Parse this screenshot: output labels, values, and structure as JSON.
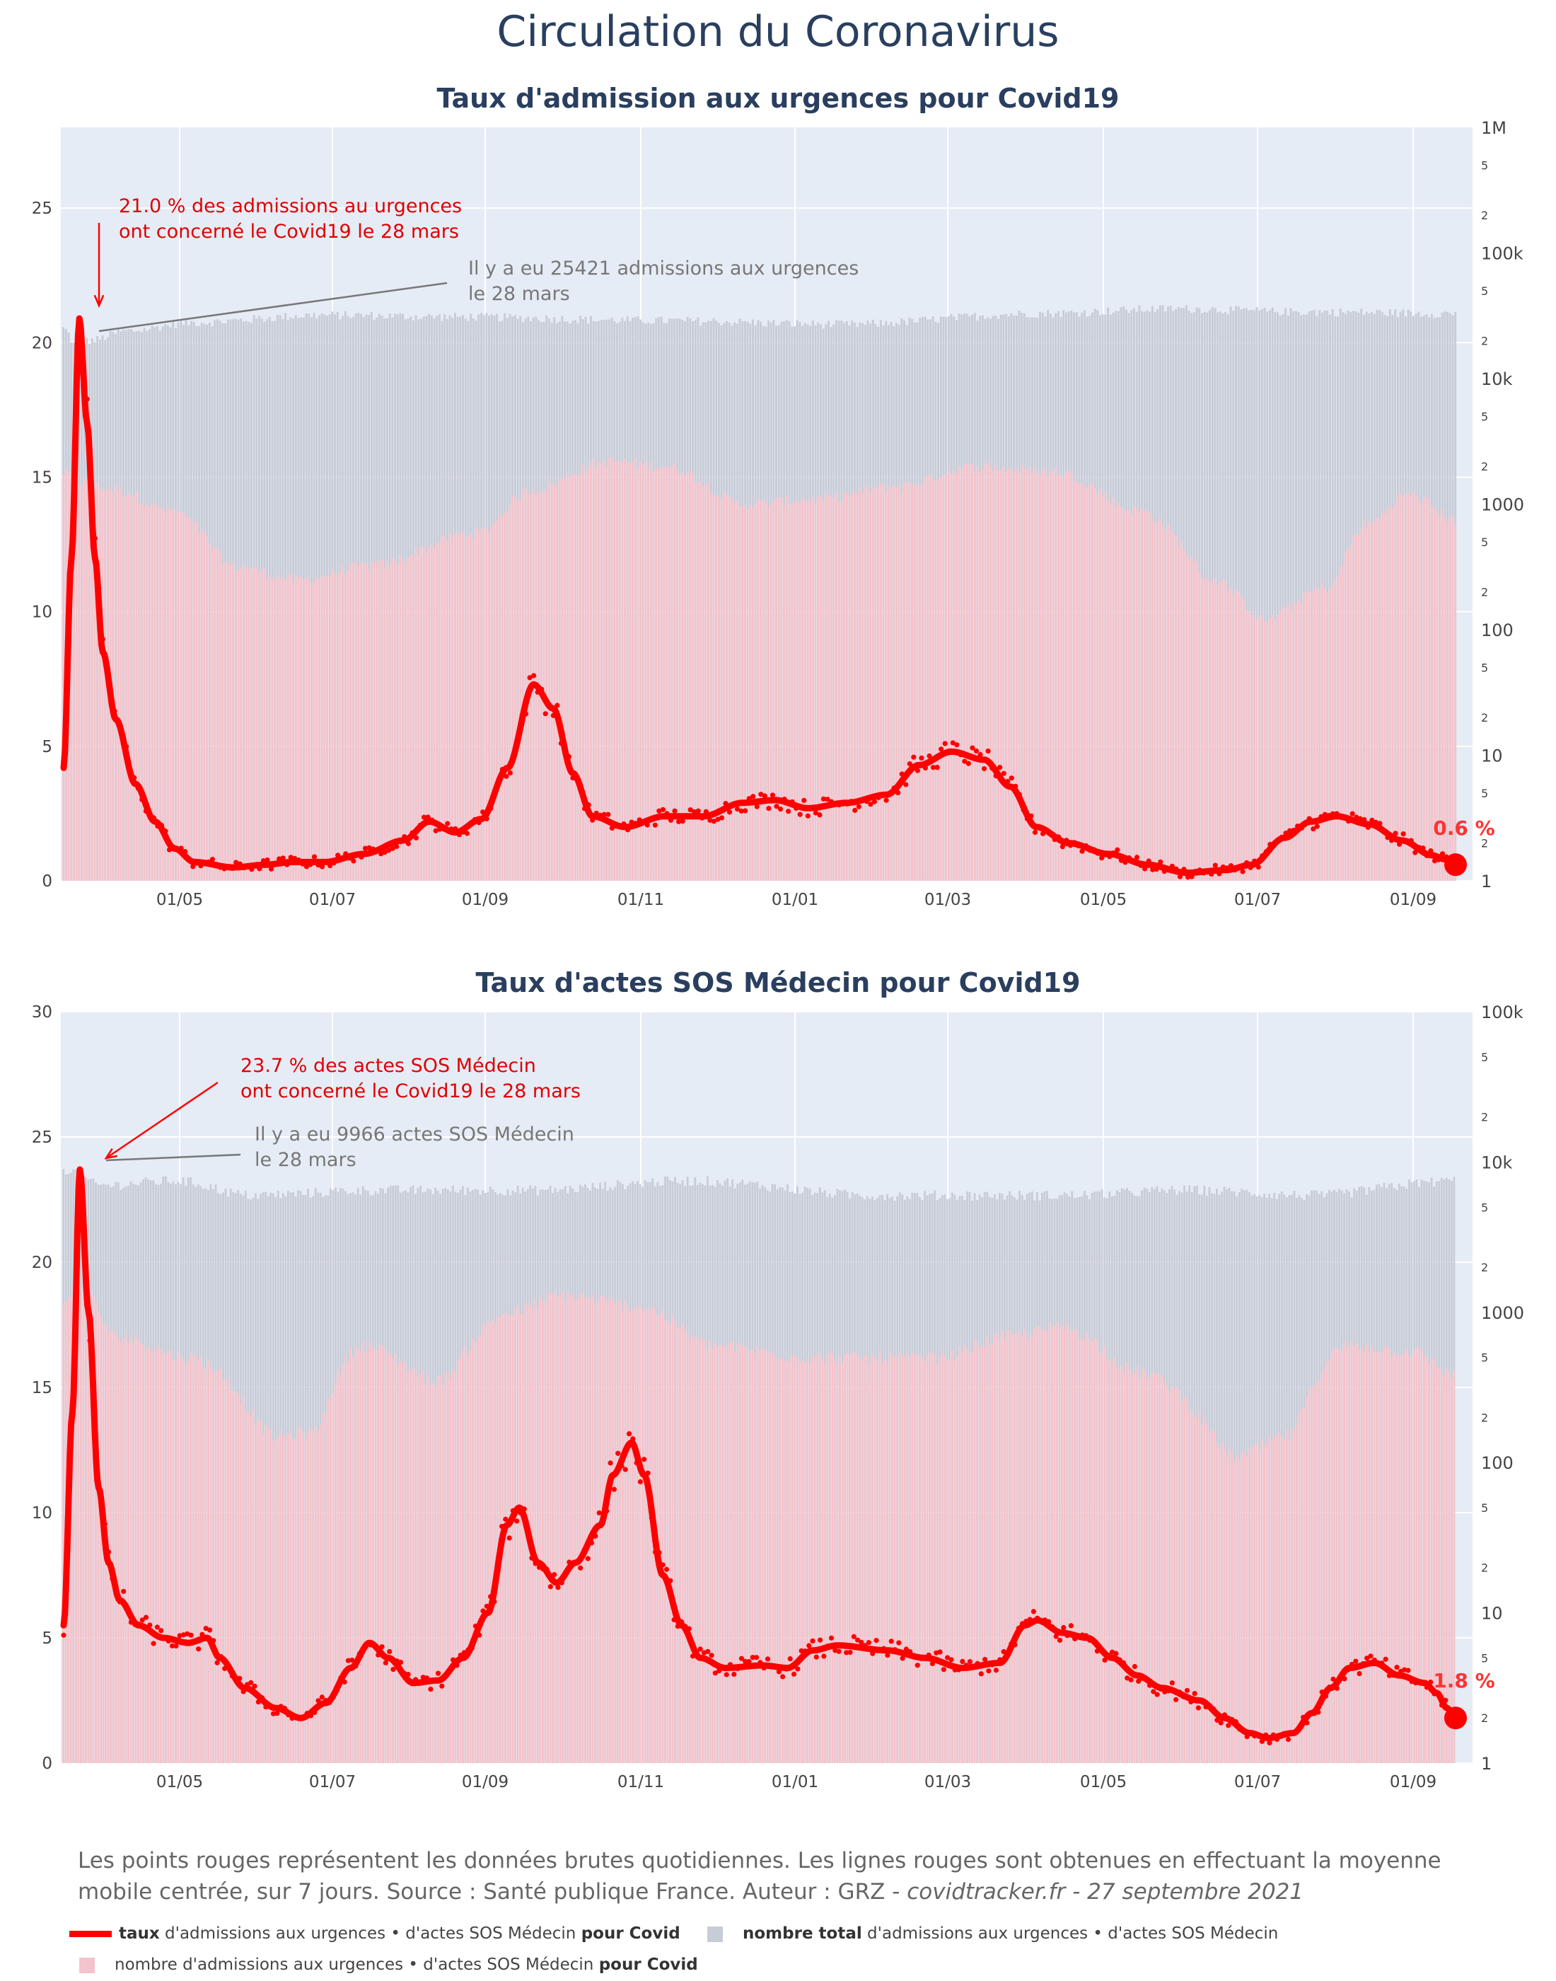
{
  "title": "Circulation du Coronavirus",
  "footnote": {
    "text": "Les points rouges représentent les données brutes quotidiennes. Les lignes rouges sont obtenues en effectuant la moyenne mobile centrée, sur 7 jours. Source : Santé publique France. Auteur : GRZ - ",
    "italic": "covidtracker.fr - 27 septembre 2021"
  },
  "legend": {
    "line_bold": "taux",
    "line_text": " d'admissions aux urgences • d'actes SOS Médecin ",
    "line_bold2": "pour Covid",
    "gray_bold": "nombre total",
    "gray_text": " d'admissions aux urgences • d'actes SOS Médecin",
    "pink_text": "nombre d'admissions aux urgences • d'actes SOS Médecin ",
    "pink_bold": "pour Covid"
  },
  "colors": {
    "red": "#ff0000",
    "gray": "#c8ccd6",
    "pink": "#f4c3cb",
    "plot_bg": "#e5ecf6"
  },
  "chart_data": [
    {
      "type": "line",
      "title": "Taux d'admission aux urgences pour Covid19",
      "x_ticks": [
        "01/05",
        "01/07",
        "01/09",
        "01/11",
        "01/01",
        "01/03",
        "01/05",
        "01/07",
        "01/09"
      ],
      "y_ticks": [
        "0",
        "5",
        "10",
        "15",
        "20",
        "25"
      ],
      "ylim": [
        0,
        28
      ],
      "y2_ticks": [
        "1M",
        "5",
        "2",
        "100k",
        "5",
        "2",
        "10k",
        "5",
        "2",
        "1000",
        "5",
        "2",
        "100",
        "5",
        "2",
        "10",
        "5",
        "2",
        "1"
      ],
      "last_value_label": "0.6 %",
      "last_value": 0.6,
      "annotation_red": [
        "21.0 % des admissions au urgences",
        "ont concerné le Covid19 le 28 mars"
      ],
      "annotation_gray": [
        "Il y a eu 25421 admissions aux urgences",
        "le 28 mars"
      ],
      "peak_value": 21.0,
      "series_knots": [
        [
          0,
          4.2
        ],
        [
          6,
          12
        ],
        [
          12,
          20.9
        ],
        [
          18,
          17
        ],
        [
          24,
          12
        ],
        [
          30,
          8.5
        ],
        [
          40,
          6
        ],
        [
          55,
          3.6
        ],
        [
          70,
          2.2
        ],
        [
          85,
          1.2
        ],
        [
          100,
          0.7
        ],
        [
          130,
          0.5
        ],
        [
          155,
          0.6
        ],
        [
          175,
          0.7
        ],
        [
          200,
          0.7
        ],
        [
          230,
          1.0
        ],
        [
          260,
          1.5
        ],
        [
          280,
          2.2
        ],
        [
          300,
          1.8
        ],
        [
          320,
          2.3
        ],
        [
          340,
          4.2
        ],
        [
          360,
          7.3
        ],
        [
          375,
          6.4
        ],
        [
          390,
          4.0
        ],
        [
          405,
          2.4
        ],
        [
          430,
          2.0
        ],
        [
          460,
          2.4
        ],
        [
          490,
          2.4
        ],
        [
          520,
          2.9
        ],
        [
          545,
          3.0
        ],
        [
          570,
          2.7
        ],
        [
          600,
          2.9
        ],
        [
          630,
          3.2
        ],
        [
          655,
          4.3
        ],
        [
          680,
          4.8
        ],
        [
          705,
          4.5
        ],
        [
          725,
          3.5
        ],
        [
          745,
          2.0
        ],
        [
          770,
          1.4
        ],
        [
          800,
          1.0
        ],
        [
          830,
          0.6
        ],
        [
          860,
          0.3
        ],
        [
          890,
          0.4
        ],
        [
          910,
          0.6
        ],
        [
          935,
          1.6
        ],
        [
          955,
          2.2
        ],
        [
          975,
          2.4
        ],
        [
          1000,
          2.1
        ],
        [
          1025,
          1.5
        ],
        [
          1048,
          0.95
        ],
        [
          1058,
          0.8
        ],
        [
          1066,
          0.6
        ]
      ],
      "gray_total_knots": [
        [
          0,
          25000
        ],
        [
          10,
          18000
        ],
        [
          20,
          20000
        ],
        [
          50,
          24000
        ],
        [
          100,
          28000
        ],
        [
          200,
          32000
        ],
        [
          300,
          31000
        ],
        [
          450,
          29000
        ],
        [
          600,
          27000
        ],
        [
          750,
          33000
        ],
        [
          850,
          36000
        ],
        [
          950,
          34000
        ],
        [
          1066,
          33000
        ]
      ],
      "pink_covid_knots": [
        [
          0,
          1800
        ],
        [
          12,
          1500
        ],
        [
          40,
          1300
        ],
        [
          80,
          900
        ],
        [
          130,
          320
        ],
        [
          180,
          250
        ],
        [
          240,
          330
        ],
        [
          320,
          600
        ],
        [
          360,
          1300
        ],
        [
          420,
          2200
        ],
        [
          460,
          2000
        ],
        [
          520,
          1000
        ],
        [
          580,
          1100
        ],
        [
          640,
          1400
        ],
        [
          700,
          2000
        ],
        [
          760,
          1800
        ],
        [
          820,
          900
        ],
        [
          880,
          250
        ],
        [
          920,
          120
        ],
        [
          970,
          220
        ],
        [
          1000,
          700
        ],
        [
          1030,
          1200
        ],
        [
          1066,
          750
        ]
      ]
    },
    {
      "type": "line",
      "title": "Taux d'actes SOS Médecin pour Covid19",
      "x_ticks": [
        "01/05",
        "01/07",
        "01/09",
        "01/11",
        "01/01",
        "01/03",
        "01/05",
        "01/07",
        "01/09"
      ],
      "y_ticks": [
        "0",
        "5",
        "10",
        "15",
        "20",
        "25",
        "30"
      ],
      "ylim": [
        0,
        30
      ],
      "y2_ticks": [
        "100k",
        "5",
        "2",
        "10k",
        "5",
        "2",
        "1000",
        "5",
        "2",
        "100",
        "5",
        "2",
        "10",
        "5",
        "2",
        "1"
      ],
      "last_value_label": "1.8 %",
      "last_value": 1.8,
      "annotation_red": [
        "23.7 % des actes SOS Médecin",
        "ont concerné le Covid19 le 28 mars"
      ],
      "annotation_gray": [
        "Il y a eu 9966 actes SOS Médecin",
        "le 28 mars"
      ],
      "peak_value": 23.7,
      "series_knots": [
        [
          0,
          5.5
        ],
        [
          7,
          14
        ],
        [
          13,
          23.7
        ],
        [
          20,
          18
        ],
        [
          28,
          11
        ],
        [
          36,
          8
        ],
        [
          45,
          6.5
        ],
        [
          60,
          5.5
        ],
        [
          80,
          5.0
        ],
        [
          100,
          4.8
        ],
        [
          115,
          5.0
        ],
        [
          125,
          4.2
        ],
        [
          145,
          3.0
        ],
        [
          170,
          2.2
        ],
        [
          190,
          1.8
        ],
        [
          210,
          2.4
        ],
        [
          230,
          3.8
        ],
        [
          245,
          4.8
        ],
        [
          260,
          4.2
        ],
        [
          280,
          3.2
        ],
        [
          300,
          3.3
        ],
        [
          320,
          4.2
        ],
        [
          340,
          6.0
        ],
        [
          355,
          9.5
        ],
        [
          365,
          10.2
        ],
        [
          380,
          8.0
        ],
        [
          395,
          7.2
        ],
        [
          410,
          8.0
        ],
        [
          430,
          9.5
        ],
        [
          440,
          11.5
        ],
        [
          455,
          12.8
        ],
        [
          465,
          11.5
        ],
        [
          480,
          7.5
        ],
        [
          495,
          5.5
        ],
        [
          510,
          4.2
        ],
        [
          530,
          3.8
        ],
        [
          560,
          3.9
        ],
        [
          580,
          3.8
        ],
        [
          600,
          4.5
        ],
        [
          620,
          4.7
        ],
        [
          660,
          4.5
        ],
        [
          690,
          4.2
        ],
        [
          720,
          3.8
        ],
        [
          750,
          4.0
        ],
        [
          770,
          5.5
        ],
        [
          780,
          5.7
        ],
        [
          800,
          5.2
        ],
        [
          820,
          5.0
        ],
        [
          840,
          4.2
        ],
        [
          860,
          3.5
        ],
        [
          880,
          3.0
        ],
        [
          910,
          2.5
        ],
        [
          930,
          1.8
        ],
        [
          950,
          1.2
        ],
        [
          965,
          1.0
        ],
        [
          985,
          1.2
        ],
        [
          1000,
          2.0
        ],
        [
          1015,
          3.0
        ],
        [
          1030,
          3.8
        ],
        [
          1050,
          4.0
        ],
        [
          1070,
          3.5
        ],
        [
          1090,
          3.2
        ],
        [
          1100,
          2.8
        ],
        [
          1108,
          2.2
        ],
        [
          1115,
          1.8
        ]
      ],
      "gray_total_knots": [
        [
          0,
          9000
        ],
        [
          30,
          7000
        ],
        [
          90,
          7500
        ],
        [
          150,
          6000
        ],
        [
          250,
          6500
        ],
        [
          380,
          6500
        ],
        [
          500,
          7500
        ],
        [
          650,
          6000
        ],
        [
          800,
          6000
        ],
        [
          900,
          6500
        ],
        [
          1000,
          6000
        ],
        [
          1115,
          7500
        ]
      ],
      "pink_covid_knots": [
        [
          0,
          1200
        ],
        [
          13,
          1500
        ],
        [
          40,
          700
        ],
        [
          100,
          500
        ],
        [
          170,
          150
        ],
        [
          200,
          160
        ],
        [
          240,
          600
        ],
        [
          300,
          350
        ],
        [
          360,
          1000
        ],
        [
          400,
          1300
        ],
        [
          460,
          1100
        ],
        [
          520,
          600
        ],
        [
          600,
          500
        ],
        [
          700,
          500
        ],
        [
          760,
          700
        ],
        [
          800,
          800
        ],
        [
          860,
          400
        ],
        [
          940,
          110
        ],
        [
          980,
          150
        ],
        [
          1030,
          600
        ],
        [
          1080,
          550
        ],
        [
          1115,
          380
        ]
      ]
    }
  ]
}
